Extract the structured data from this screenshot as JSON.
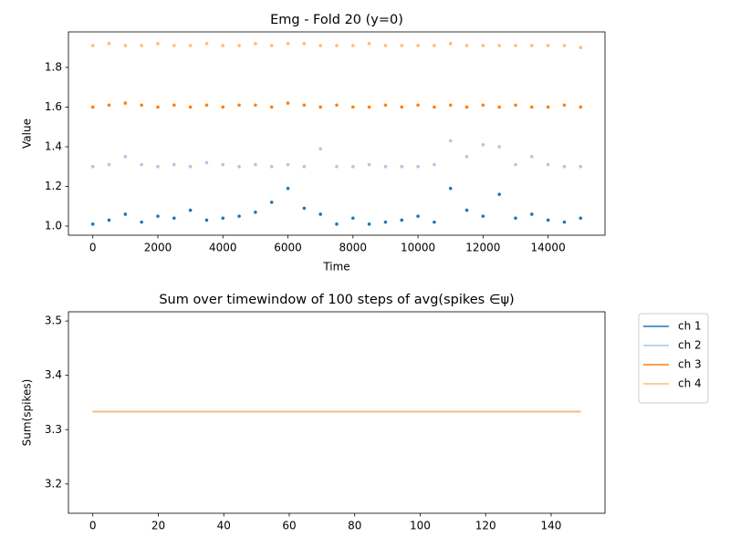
{
  "chart_data": [
    {
      "type": "scatter",
      "title": "Emg - Fold 20 (y=0)",
      "xlabel": "Time",
      "ylabel": "Value",
      "x": [
        0,
        500,
        1000,
        1500,
        2000,
        2500,
        3000,
        3500,
        4000,
        4500,
        5000,
        5500,
        6000,
        6500,
        7000,
        7500,
        8000,
        8500,
        9000,
        9500,
        10000,
        10500,
        11000,
        11500,
        12000,
        12500,
        13000,
        13500,
        14000,
        14500,
        15000
      ],
      "series": [
        {
          "color": "#1f77b4",
          "values": [
            1.01,
            1.03,
            1.06,
            1.02,
            1.05,
            1.04,
            1.08,
            1.03,
            1.04,
            1.05,
            1.07,
            1.12,
            1.19,
            1.09,
            1.06,
            1.01,
            1.04,
            1.01,
            1.02,
            1.03,
            1.05,
            1.02,
            1.19,
            1.08,
            1.05,
            1.16,
            1.04,
            1.06,
            1.03,
            1.02,
            1.04
          ]
        },
        {
          "color": "#aec7e8",
          "values": [
            1.3,
            1.31,
            1.35,
            1.31,
            1.3,
            1.31,
            1.3,
            1.32,
            1.31,
            1.3,
            1.31,
            1.3,
            1.31,
            1.3,
            1.39,
            1.3,
            1.3,
            1.31,
            1.3,
            1.3,
            1.3,
            1.31,
            1.43,
            1.35,
            1.41,
            1.4,
            1.31,
            1.35,
            1.31,
            1.3,
            1.3
          ]
        },
        {
          "color": "#ff7f0e",
          "values": [
            1.6,
            1.61,
            1.62,
            1.61,
            1.6,
            1.61,
            1.6,
            1.61,
            1.6,
            1.61,
            1.61,
            1.6,
            1.62,
            1.61,
            1.6,
            1.61,
            1.6,
            1.6,
            1.61,
            1.6,
            1.61,
            1.6,
            1.61,
            1.6,
            1.61,
            1.6,
            1.61,
            1.6,
            1.6,
            1.61,
            1.6
          ]
        },
        {
          "color": "#ffbb78",
          "values": [
            1.91,
            1.92,
            1.91,
            1.91,
            1.92,
            1.91,
            1.91,
            1.92,
            1.91,
            1.91,
            1.92,
            1.91,
            1.92,
            1.92,
            1.91,
            1.91,
            1.91,
            1.92,
            1.91,
            1.91,
            1.91,
            1.91,
            1.92,
            1.91,
            1.91,
            1.91,
            1.91,
            1.91,
            1.91,
            1.91,
            1.9
          ]
        }
      ],
      "xlim": [
        -750,
        15750
      ],
      "xticks": [
        0,
        2000,
        4000,
        6000,
        8000,
        10000,
        12000,
        14000
      ],
      "ylim": [
        0.954,
        1.979
      ],
      "yticks": [
        {
          "value": 1,
          "label": "1.0"
        },
        1.2,
        1.4,
        1.6,
        1.8
      ]
    },
    {
      "type": "line",
      "title": "Sum over timewindow of 100 steps of avg(spikes ∈ψ)",
      "ylabel": "Sum(spikes)",
      "x": [
        0,
        149
      ],
      "series": [
        {
          "name": "ch 1",
          "color": "#1f77b4",
          "values": [
            3.333,
            3.333
          ]
        },
        {
          "name": "ch 2",
          "color": "#aec7e8",
          "values": [
            3.333,
            3.333
          ]
        },
        {
          "name": "ch 3",
          "color": "#ff7f0e",
          "values": [
            3.333,
            3.333
          ]
        },
        {
          "name": "ch 4",
          "color": "#ffbb78",
          "values": [
            3.333,
            3.333
          ]
        }
      ],
      "xlim": [
        -7.45,
        156.45
      ],
      "xticks": [
        0,
        20,
        40,
        60,
        80,
        100,
        120,
        140
      ],
      "ylim": [
        3.146,
        3.517
      ],
      "yticks": [
        3.2,
        3.3,
        3.4,
        3.5
      ],
      "legend": "outside-right"
    }
  ]
}
